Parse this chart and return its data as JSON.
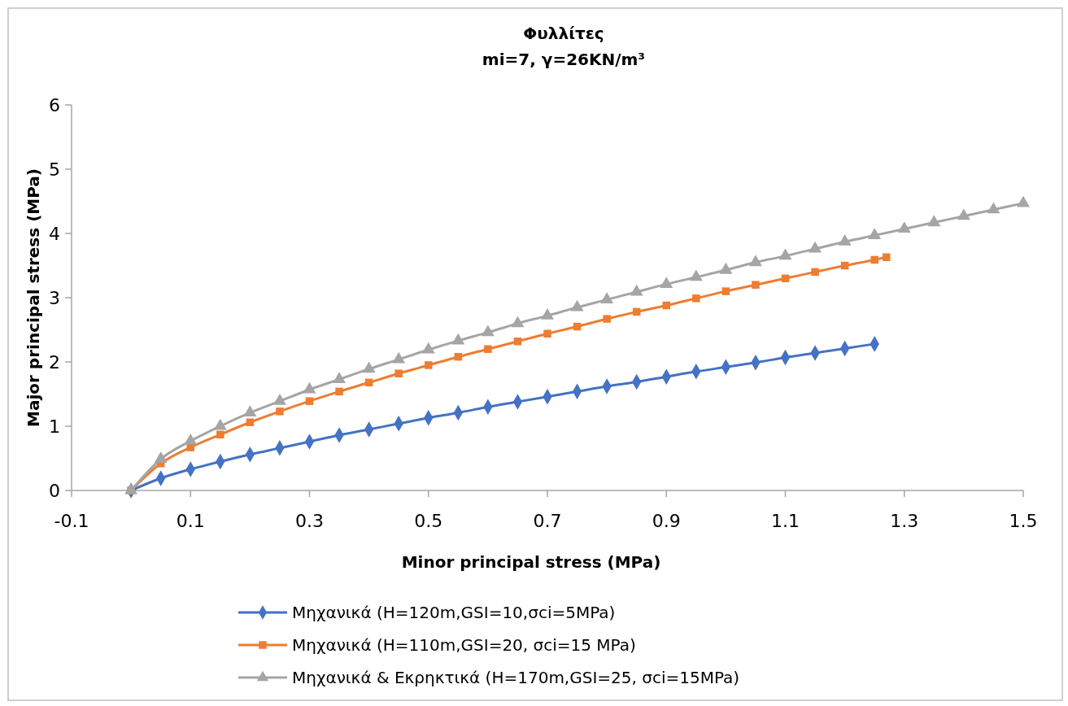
{
  "chart_data": {
    "type": "line",
    "title": "Φυλλίτες",
    "subtitle": "mi=7, γ=26KN/m³",
    "xlabel": "Minor principal stress (MPa)",
    "ylabel": "Major principal stress (MPa)",
    "xlim": [
      -0.1,
      1.5
    ],
    "xticks": [
      -0.1,
      0.1,
      0.3,
      0.5,
      0.7,
      0.9,
      1.1,
      1.3,
      1.5
    ],
    "ylim": [
      0,
      6
    ],
    "yticks": [
      0,
      1,
      2,
      3,
      4,
      5,
      6
    ],
    "grid": false,
    "legend": "bottom",
    "line_style": "solid",
    "series": [
      {
        "name": "Μηχανικά (H=120m,GSI=10,σci=5MPa)",
        "color": "#4472c4",
        "marker": "diamond",
        "x": [
          0,
          0.05,
          0.1,
          0.15,
          0.2,
          0.25,
          0.3,
          0.35,
          0.4,
          0.45,
          0.5,
          0.55,
          0.6,
          0.65,
          0.7,
          0.75,
          0.8,
          0.85,
          0.9,
          0.95,
          1.0,
          1.05,
          1.1,
          1.15,
          1.2,
          1.25
        ],
        "values": [
          0,
          0.19,
          0.33,
          0.45,
          0.56,
          0.66,
          0.76,
          0.86,
          0.95,
          1.04,
          1.13,
          1.21,
          1.3,
          1.38,
          1.46,
          1.54,
          1.62,
          1.69,
          1.77,
          1.85,
          1.92,
          1.99,
          2.07,
          2.14,
          2.21,
          2.28
        ]
      },
      {
        "name": "Μηχανικά (H=110m,GSI=20, σci=15 MPa)",
        "color": "#ed7d31",
        "marker": "square",
        "x": [
          0,
          0.05,
          0.1,
          0.15,
          0.2,
          0.25,
          0.3,
          0.35,
          0.4,
          0.45,
          0.5,
          0.55,
          0.6,
          0.65,
          0.7,
          0.75,
          0.8,
          0.85,
          0.9,
          0.95,
          1.0,
          1.05,
          1.1,
          1.15,
          1.2,
          1.25,
          1.27
        ],
        "values": [
          0,
          0.42,
          0.67,
          0.87,
          1.06,
          1.23,
          1.39,
          1.54,
          1.68,
          1.82,
          1.95,
          2.08,
          2.2,
          2.32,
          2.44,
          2.55,
          2.67,
          2.78,
          2.88,
          2.99,
          3.1,
          3.2,
          3.3,
          3.4,
          3.5,
          3.59,
          3.63
        ]
      },
      {
        "name": "Μηχανικά & Εκρηκτικά (H=170m,GSI=25, σci=15MPa)",
        "color": "#a5a5a5",
        "marker": "triangle",
        "x": [
          0,
          0.05,
          0.1,
          0.15,
          0.2,
          0.25,
          0.3,
          0.35,
          0.4,
          0.45,
          0.5,
          0.55,
          0.6,
          0.65,
          0.7,
          0.75,
          0.8,
          0.85,
          0.9,
          0.95,
          1.0,
          1.05,
          1.1,
          1.15,
          1.2,
          1.25,
          1.3,
          1.35,
          1.4,
          1.45,
          1.5
        ],
        "values": [
          0,
          0.49,
          0.77,
          1.0,
          1.21,
          1.39,
          1.57,
          1.73,
          1.89,
          2.04,
          2.19,
          2.33,
          2.46,
          2.6,
          2.72,
          2.85,
          2.97,
          3.09,
          3.21,
          3.32,
          3.43,
          3.55,
          3.65,
          3.76,
          3.87,
          3.97,
          4.07,
          4.17,
          4.27,
          4.37,
          4.47
        ]
      }
    ]
  }
}
